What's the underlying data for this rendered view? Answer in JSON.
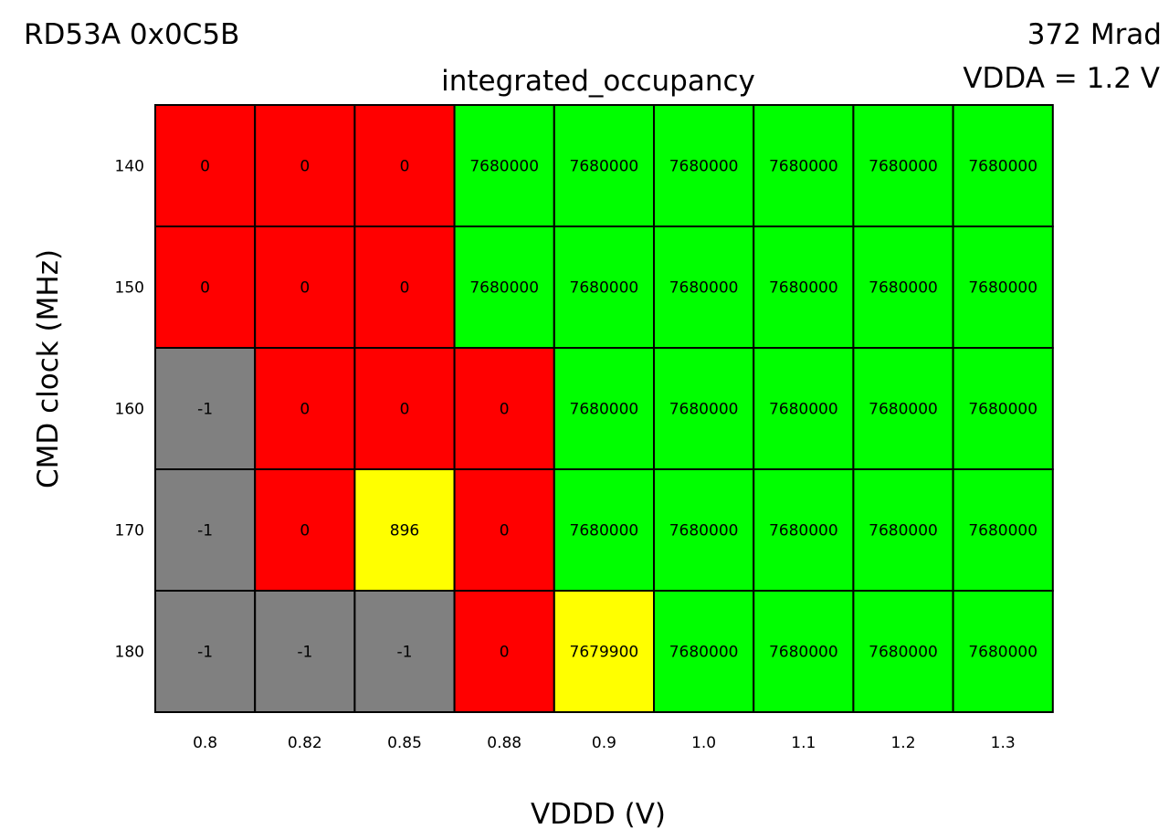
{
  "header": {
    "chip_id": "RD53A 0x0C5B",
    "dose": "372 Mrad",
    "vdda": "VDDA = 1.2 V"
  },
  "colors": {
    "fail": "#ff0000",
    "pass": "#00ff00",
    "partial": "#ffff00",
    "no_data": "#808080",
    "grid": "#000000"
  },
  "chart_data": {
    "type": "heatmap",
    "title": "integrated_occupancy",
    "xlabel": "VDDD (V)",
    "ylabel": "CMD clock (MHz)",
    "x": [
      "0.8",
      "0.82",
      "0.85",
      "0.88",
      "0.9",
      "1.0",
      "1.1",
      "1.2",
      "1.3"
    ],
    "y": [
      "140",
      "150",
      "160",
      "170",
      "180"
    ],
    "values": [
      [
        0,
        0,
        0,
        7680000,
        7680000,
        7680000,
        7680000,
        7680000,
        7680000
      ],
      [
        0,
        0,
        0,
        7680000,
        7680000,
        7680000,
        7680000,
        7680000,
        7680000
      ],
      [
        -1,
        0,
        0,
        0,
        7680000,
        7680000,
        7680000,
        7680000,
        7680000
      ],
      [
        -1,
        0,
        896,
        0,
        7680000,
        7680000,
        7680000,
        7680000,
        7680000
      ],
      [
        -1,
        -1,
        -1,
        0,
        7679900,
        7680000,
        7680000,
        7680000,
        7680000
      ]
    ],
    "color_rule": {
      "-1": "no_data",
      "0": "fail",
      "7680000": "pass",
      "other": "partial"
    }
  }
}
